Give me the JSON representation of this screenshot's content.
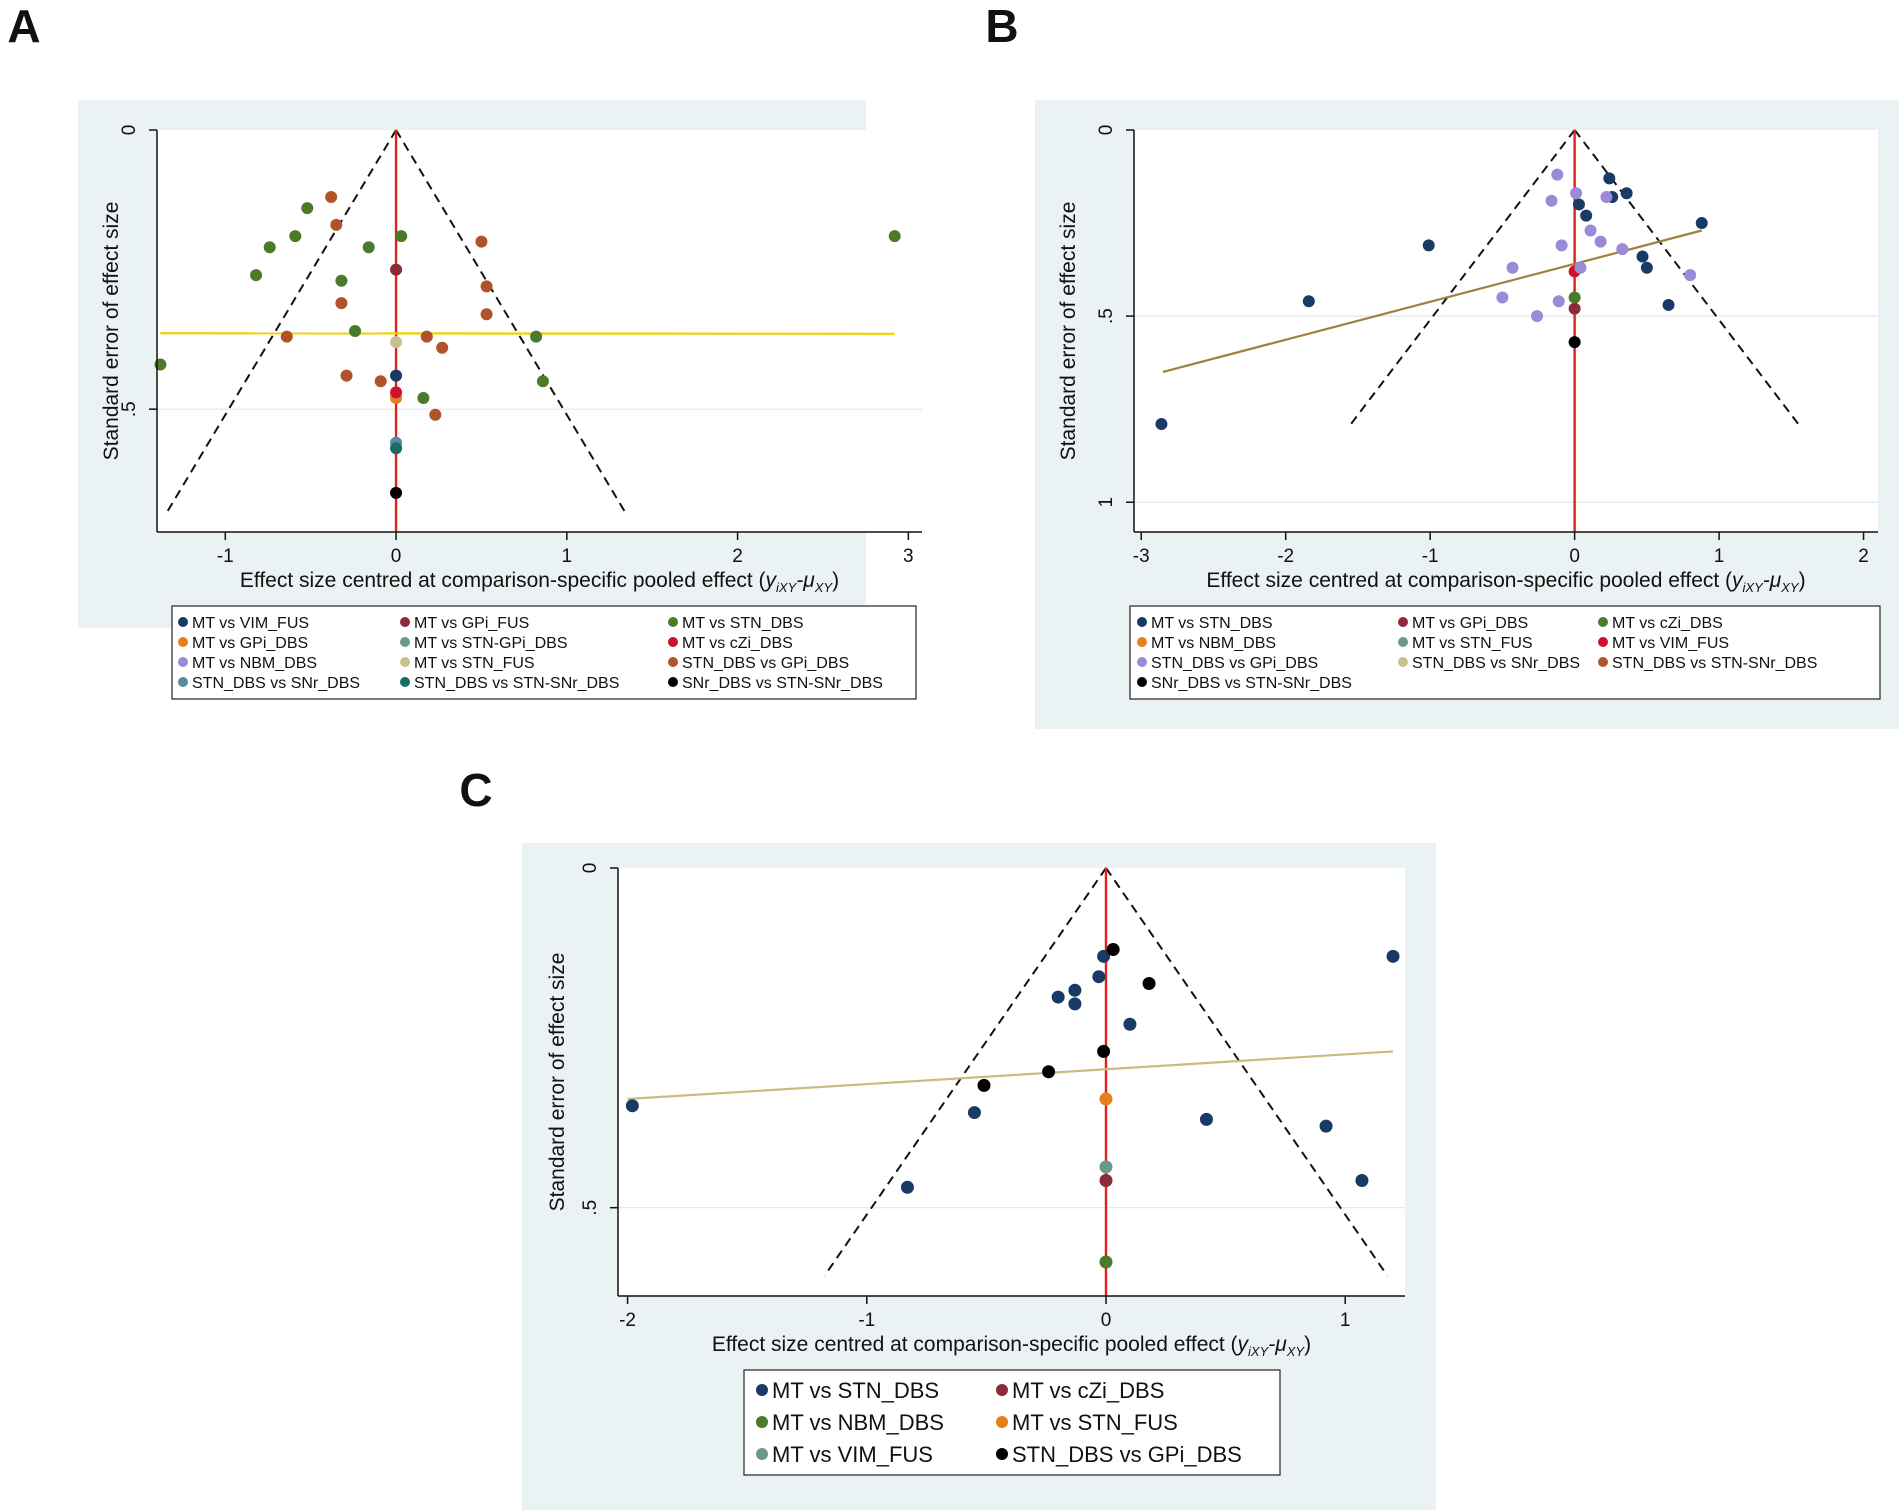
{
  "figure": {
    "panel_labels": [
      "A",
      "B",
      "C"
    ]
  },
  "chart_data": [
    {
      "panel": "A",
      "type": "scatter",
      "subtype": "comparison-adjusted funnel plot",
      "xlabel_main": "Effect size centred at comparison-specific pooled effect (",
      "xlabel_math": "y",
      "xlabel_sub1": "iXY",
      "xlabel_dash": "-μ",
      "xlabel_sub2": "XY",
      "xlabel_close": ")",
      "ylabel": "Standard error of effect size",
      "xlim": [
        -1.4,
        3.08
      ],
      "ylim": [
        0,
        0.72
      ],
      "xticks": [
        -1,
        0,
        1,
        2,
        3
      ],
      "xtick_labels": [
        "-1",
        "0",
        "1",
        "2",
        "3"
      ],
      "yticks": [
        0,
        0.5
      ],
      "ytick_labels": [
        "0",
        ".5"
      ],
      "funnel": {
        "center": 0,
        "se_max": 0.69,
        "multiplier": 1.96
      },
      "regression": {
        "color": "#f0d000",
        "x": [
          -1.38,
          2.92
        ],
        "y": [
          0.364,
          0.365
        ]
      },
      "series": [
        {
          "name": "MT vs VIM_FUS",
          "color": "#1a3a66",
          "points": [
            [
              0,
              0.44
            ]
          ]
        },
        {
          "name": "MT vs GPi_FUS",
          "color": "#8c2a3a",
          "points": [
            [
              0,
              0.25
            ]
          ]
        },
        {
          "name": "MT vs STN_DBS",
          "color": "#4b7a2a",
          "points": [
            [
              -1.38,
              0.42
            ],
            [
              -0.82,
              0.26
            ],
            [
              -0.74,
              0.21
            ],
            [
              -0.59,
              0.19
            ],
            [
              -0.52,
              0.14
            ],
            [
              -0.32,
              0.27
            ],
            [
              -0.24,
              0.36
            ],
            [
              -0.16,
              0.21
            ],
            [
              0.03,
              0.19
            ],
            [
              0.16,
              0.48
            ],
            [
              0.82,
              0.37
            ],
            [
              0.86,
              0.45
            ],
            [
              2.92,
              0.19
            ]
          ]
        },
        {
          "name": "MT vs GPi_DBS",
          "color": "#e8801a",
          "points": [
            [
              0,
              0.48
            ]
          ]
        },
        {
          "name": "MT vs STN-GPi_DBS",
          "color": "#6a9a86",
          "points": []
        },
        {
          "name": "MT vs cZi_DBS",
          "color": "#d0102a",
          "points": [
            [
              0,
              0.47
            ]
          ]
        },
        {
          "name": "MT vs NBM_DBS",
          "color": "#9a8ad8",
          "points": []
        },
        {
          "name": "MT vs STN_FUS",
          "color": "#c8c08a",
          "points": [
            [
              0,
              0.38
            ]
          ]
        },
        {
          "name": "STN_DBS vs GPi_DBS",
          "color": "#b0522a",
          "points": [
            [
              -0.38,
              0.12
            ],
            [
              -0.35,
              0.17
            ],
            [
              -0.32,
              0.31
            ],
            [
              -0.29,
              0.44
            ],
            [
              -0.64,
              0.37
            ],
            [
              -0.09,
              0.45
            ],
            [
              0.18,
              0.37
            ],
            [
              0.27,
              0.39
            ],
            [
              0.23,
              0.51
            ],
            [
              0.5,
              0.2
            ],
            [
              0.53,
              0.28
            ],
            [
              0.53,
              0.33
            ]
          ]
        },
        {
          "name": "STN_DBS vs SNr_DBS",
          "color": "#5a8aa0",
          "points": [
            [
              0,
              0.56
            ]
          ]
        },
        {
          "name": "STN_DBS vs STN-SNr_DBS",
          "color": "#1a6a66",
          "points": [
            [
              0,
              0.57
            ]
          ]
        },
        {
          "name": "SNr_DBS vs STN-SNr_DBS",
          "color": "#000000",
          "points": [
            [
              0,
              0.65
            ]
          ]
        }
      ]
    },
    {
      "panel": "B",
      "type": "scatter",
      "subtype": "comparison-adjusted funnel plot",
      "xlabel_main": "Effect size centred at comparison-specific pooled effect (",
      "xlabel_math": "y",
      "xlabel_sub1": "iXY",
      "xlabel_dash": "-μ",
      "xlabel_sub2": "XY",
      "xlabel_close": ")",
      "ylabel": "Standard error of effect size",
      "xlim": [
        -3.05,
        2.1
      ],
      "ylim": [
        0,
        1.08
      ],
      "xticks": [
        -3,
        -2,
        -1,
        0,
        1,
        2
      ],
      "xtick_labels": [
        "-3",
        "-2",
        "-1",
        "0",
        "1",
        "2"
      ],
      "yticks": [
        0,
        0.5,
        1
      ],
      "ytick_labels": [
        "0",
        ".5",
        "1"
      ],
      "funnel": {
        "center": 0,
        "se_max": 0.8,
        "multiplier": 1.96
      },
      "regression": {
        "color": "#a08040",
        "x": [
          -2.85,
          0.88
        ],
        "y": [
          0.65,
          0.27
        ]
      },
      "series": [
        {
          "name": "MT vs STN_DBS",
          "color": "#1a3a66",
          "points": [
            [
              -2.86,
              0.79
            ],
            [
              -1.84,
              0.46
            ],
            [
              -1.01,
              0.31
            ],
            [
              0.03,
              0.2
            ],
            [
              0.08,
              0.23
            ],
            [
              0.24,
              0.13
            ],
            [
              0.26,
              0.18
            ],
            [
              0.36,
              0.17
            ],
            [
              0.47,
              0.34
            ],
            [
              0.5,
              0.37
            ],
            [
              0.65,
              0.47
            ],
            [
              0.88,
              0.25
            ]
          ]
        },
        {
          "name": "MT vs GPi_DBS",
          "color": "#8c2a3a",
          "points": [
            [
              0,
              0.48
            ]
          ]
        },
        {
          "name": "MT vs cZi_DBS",
          "color": "#4b7a2a",
          "points": [
            [
              0,
              0.45
            ]
          ]
        },
        {
          "name": "MT vs NBM_DBS",
          "color": "#e8801a",
          "points": []
        },
        {
          "name": "MT vs STN_FUS",
          "color": "#6a9a86",
          "points": []
        },
        {
          "name": "MT vs VIM_FUS",
          "color": "#d0102a",
          "points": [
            [
              0,
              0.38
            ]
          ]
        },
        {
          "name": "STN_DBS vs GPi_DBS",
          "color": "#9a8ad8",
          "points": [
            [
              -0.12,
              0.12
            ],
            [
              -0.16,
              0.19
            ],
            [
              0.01,
              0.17
            ],
            [
              0.22,
              0.18
            ],
            [
              0.11,
              0.27
            ],
            [
              0.18,
              0.3
            ],
            [
              -0.09,
              0.31
            ],
            [
              0.33,
              0.32
            ],
            [
              -0.43,
              0.37
            ],
            [
              0.04,
              0.37
            ],
            [
              -0.5,
              0.45
            ],
            [
              -0.11,
              0.46
            ],
            [
              -0.26,
              0.5
            ],
            [
              0.8,
              0.39
            ]
          ]
        },
        {
          "name": "STN_DBS vs SNr_DBS",
          "color": "#c8c08a",
          "points": []
        },
        {
          "name": "STN_DBS vs STN-SNr_DBS",
          "color": "#b0522a",
          "points": []
        },
        {
          "name": "SNr_DBS vs STN-SNr_DBS",
          "color": "#000000",
          "points": [
            [
              0,
              0.57
            ]
          ]
        }
      ]
    },
    {
      "panel": "C",
      "type": "scatter",
      "subtype": "comparison-adjusted funnel plot",
      "xlabel_main": "Effect size centred at comparison-specific pooled effect (",
      "xlabel_math": "y",
      "xlabel_sub1": "iXY",
      "xlabel_dash": "-μ",
      "xlabel_sub2": "XY",
      "xlabel_close": ")",
      "ylabel": "Standard error of effect size",
      "xlim": [
        -2.04,
        1.25
      ],
      "ylim": [
        0,
        0.63
      ],
      "xticks": [
        -2,
        -1,
        0,
        1
      ],
      "xtick_labels": [
        "-2",
        "-1",
        "0",
        "1"
      ],
      "yticks": [
        0,
        0.5
      ],
      "ytick_labels": [
        "0",
        ".5"
      ],
      "funnel": {
        "center": 0,
        "se_max": 0.6,
        "multiplier": 1.96
      },
      "regression": {
        "color": "#c8bc80",
        "x": [
          -2.0,
          1.2
        ],
        "y": [
          0.34,
          0.27
        ]
      },
      "series": [
        {
          "name": "MT vs STN_DBS",
          "color": "#1a3a66",
          "points": [
            [
              -1.98,
              0.35
            ],
            [
              -0.83,
              0.47
            ],
            [
              -0.55,
              0.36
            ],
            [
              -0.2,
              0.19
            ],
            [
              -0.13,
              0.18
            ],
            [
              -0.13,
              0.2
            ],
            [
              -0.03,
              0.16
            ],
            [
              -0.01,
              0.13
            ],
            [
              0.1,
              0.23
            ],
            [
              0.42,
              0.37
            ],
            [
              0.92,
              0.38
            ],
            [
              1.07,
              0.46
            ],
            [
              1.2,
              0.13
            ]
          ]
        },
        {
          "name": "MT vs cZi_DBS",
          "color": "#8c2a3a",
          "points": [
            [
              0,
              0.46
            ]
          ]
        },
        {
          "name": "MT vs NBM_DBS",
          "color": "#4b7a2a",
          "points": [
            [
              0,
              0.58
            ]
          ]
        },
        {
          "name": "MT vs STN_FUS",
          "color": "#e8801a",
          "points": [
            [
              0,
              0.34
            ]
          ]
        },
        {
          "name": "MT vs VIM_FUS",
          "color": "#6a9a86",
          "points": [
            [
              0,
              0.44
            ]
          ]
        },
        {
          "name": "STN_DBS vs GPi_DBS",
          "color": "#000000",
          "points": [
            [
              0.03,
              0.12
            ],
            [
              0.18,
              0.17
            ],
            [
              -0.01,
              0.27
            ],
            [
              -0.24,
              0.3
            ],
            [
              -0.51,
              0.32
            ]
          ]
        }
      ]
    }
  ]
}
